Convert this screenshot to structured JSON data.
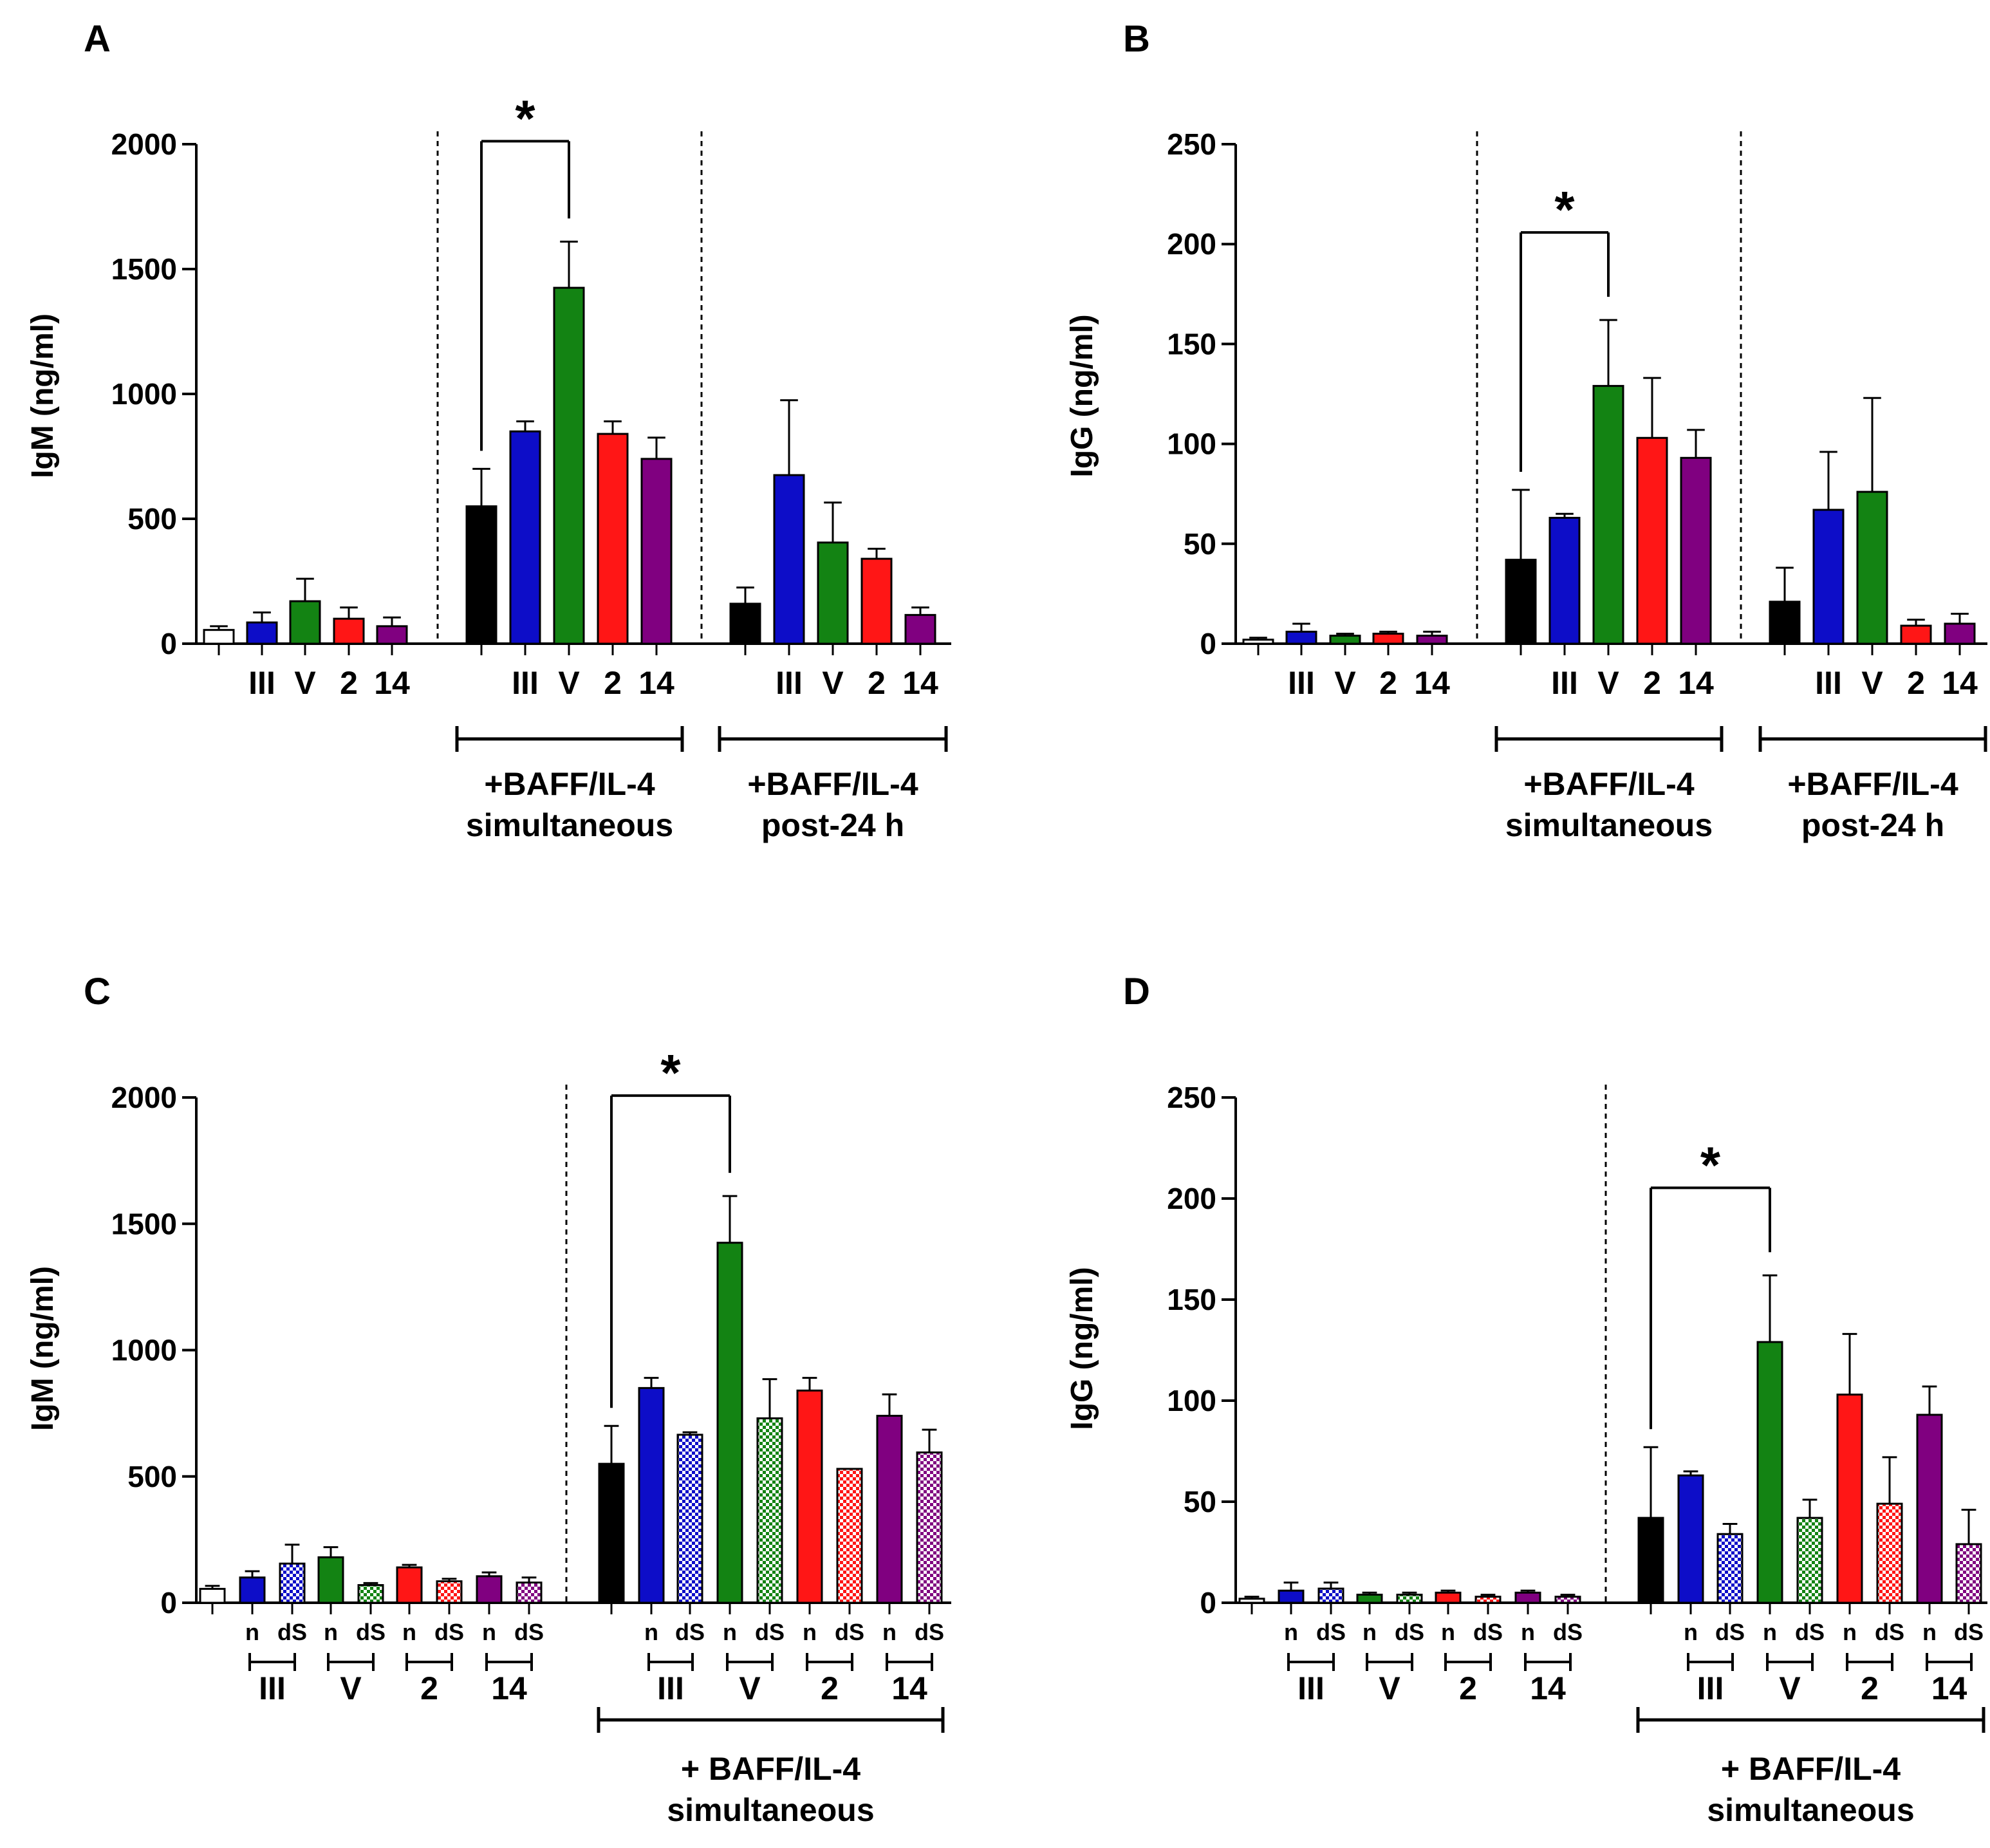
{
  "colors": {
    "control": "#ffffff",
    "III": "#0d0dc8",
    "V": "#138313",
    "2": "#ff1616",
    "14": "#800080",
    "none": "#000000"
  },
  "chart_data": [
    {
      "panel": "A",
      "type": "bar",
      "ylabel": "IgM (ng/ml)",
      "ylim": [
        0,
        2000
      ],
      "yticks": [
        0,
        500,
        1000,
        1500,
        2000
      ],
      "group_labels": [
        "+BAFF/IL-4\nsimultaneous",
        "+BAFF/IL-4\npost-24 h"
      ],
      "significance": {
        "from": 5,
        "to": 7,
        "label": "*"
      },
      "bars": [
        {
          "label": "",
          "group": "control",
          "value": 55,
          "error": 15,
          "fill": "control",
          "pattern": "solid",
          "cluster": 0
        },
        {
          "label": "III",
          "group": "III",
          "value": 85,
          "error": 40,
          "fill": "III",
          "pattern": "solid",
          "cluster": 0
        },
        {
          "label": "V",
          "group": "V",
          "value": 170,
          "error": 90,
          "fill": "V",
          "pattern": "solid",
          "cluster": 0
        },
        {
          "label": "2",
          "group": "2",
          "value": 100,
          "error": 45,
          "fill": "2",
          "pattern": "solid",
          "cluster": 0
        },
        {
          "label": "14",
          "group": "14",
          "value": 70,
          "error": 35,
          "fill": "14",
          "pattern": "solid",
          "cluster": 0
        },
        {
          "label": "",
          "group": "none",
          "value": 550,
          "error": 150,
          "fill": "none",
          "pattern": "solid",
          "cluster": 1
        },
        {
          "label": "III",
          "group": "III",
          "value": 850,
          "error": 40,
          "fill": "III",
          "pattern": "solid",
          "cluster": 1
        },
        {
          "label": "V",
          "group": "V",
          "value": 1425,
          "error": 185,
          "fill": "V",
          "pattern": "solid",
          "cluster": 1
        },
        {
          "label": "2",
          "group": "2",
          "value": 840,
          "error": 50,
          "fill": "2",
          "pattern": "solid",
          "cluster": 1
        },
        {
          "label": "14",
          "group": "14",
          "value": 740,
          "error": 85,
          "fill": "14",
          "pattern": "solid",
          "cluster": 1
        },
        {
          "label": "",
          "group": "none",
          "value": 160,
          "error": 65,
          "fill": "none",
          "pattern": "solid",
          "cluster": 2
        },
        {
          "label": "III",
          "group": "III",
          "value": 675,
          "error": 300,
          "fill": "III",
          "pattern": "solid",
          "cluster": 2
        },
        {
          "label": "V",
          "group": "V",
          "value": 405,
          "error": 160,
          "fill": "V",
          "pattern": "solid",
          "cluster": 2
        },
        {
          "label": "2",
          "group": "2",
          "value": 340,
          "error": 40,
          "fill": "2",
          "pattern": "solid",
          "cluster": 2
        },
        {
          "label": "14",
          "group": "14",
          "value": 115,
          "error": 30,
          "fill": "14",
          "pattern": "solid",
          "cluster": 2
        }
      ]
    },
    {
      "panel": "B",
      "type": "bar",
      "ylabel": "IgG (ng/ml)",
      "ylim": [
        0,
        250
      ],
      "yticks": [
        0,
        50,
        100,
        150,
        200,
        250
      ],
      "group_labels": [
        "+BAFF/IL-4\nsimultaneous",
        "+BAFF/IL-4\npost-24 h"
      ],
      "significance": {
        "from": 5,
        "to": 7,
        "label": "*"
      },
      "bars": [
        {
          "label": "",
          "group": "control",
          "value": 2,
          "error": 1,
          "fill": "control",
          "pattern": "solid",
          "cluster": 0
        },
        {
          "label": "III",
          "group": "III",
          "value": 6,
          "error": 4,
          "fill": "III",
          "pattern": "solid",
          "cluster": 0
        },
        {
          "label": "V",
          "group": "V",
          "value": 4,
          "error": 1,
          "fill": "V",
          "pattern": "solid",
          "cluster": 0
        },
        {
          "label": "2",
          "group": "2",
          "value": 5,
          "error": 1,
          "fill": "2",
          "pattern": "solid",
          "cluster": 0
        },
        {
          "label": "14",
          "group": "14",
          "value": 4,
          "error": 2,
          "fill": "14",
          "pattern": "solid",
          "cluster": 0
        },
        {
          "label": "",
          "group": "none",
          "value": 42,
          "error": 35,
          "fill": "none",
          "pattern": "solid",
          "cluster": 1
        },
        {
          "label": "III",
          "group": "III",
          "value": 63,
          "error": 2,
          "fill": "III",
          "pattern": "solid",
          "cluster": 1
        },
        {
          "label": "V",
          "group": "V",
          "value": 129,
          "error": 33,
          "fill": "V",
          "pattern": "solid",
          "cluster": 1
        },
        {
          "label": "2",
          "group": "2",
          "value": 103,
          "error": 30,
          "fill": "2",
          "pattern": "solid",
          "cluster": 1
        },
        {
          "label": "14",
          "group": "14",
          "value": 93,
          "error": 14,
          "fill": "14",
          "pattern": "solid",
          "cluster": 1
        },
        {
          "label": "",
          "group": "none",
          "value": 21,
          "error": 17,
          "fill": "none",
          "pattern": "solid",
          "cluster": 2
        },
        {
          "label": "III",
          "group": "III",
          "value": 67,
          "error": 29,
          "fill": "III",
          "pattern": "solid",
          "cluster": 2
        },
        {
          "label": "V",
          "group": "V",
          "value": 76,
          "error": 47,
          "fill": "V",
          "pattern": "solid",
          "cluster": 2
        },
        {
          "label": "2",
          "group": "2",
          "value": 9,
          "error": 3,
          "fill": "2",
          "pattern": "solid",
          "cluster": 2
        },
        {
          "label": "14",
          "group": "14",
          "value": 10,
          "error": 5,
          "fill": "14",
          "pattern": "solid",
          "cluster": 2
        }
      ]
    },
    {
      "panel": "C",
      "type": "bar",
      "ylabel": "IgM (ng/ml)",
      "ylim": [
        0,
        2000
      ],
      "yticks": [
        0,
        500,
        1000,
        1500,
        2000
      ],
      "subgroup_labels": [
        "III",
        "V",
        "2",
        "14",
        "III",
        "V",
        "2",
        "14"
      ],
      "group_labels": [
        "+ BAFF/IL-4\nsimultaneous"
      ],
      "significance": {
        "from": 9,
        "to": 12,
        "label": "*"
      },
      "bars": [
        {
          "label": "",
          "group": "control",
          "value": 55,
          "error": 12,
          "fill": "control",
          "pattern": "solid",
          "cluster": 0
        },
        {
          "label": "n",
          "group": "III",
          "value": 100,
          "error": 25,
          "fill": "III",
          "pattern": "solid",
          "cluster": 0
        },
        {
          "label": "dS",
          "group": "III",
          "value": 155,
          "error": 75,
          "fill": "III",
          "pattern": "checker",
          "cluster": 0
        },
        {
          "label": "n",
          "group": "V",
          "value": 180,
          "error": 40,
          "fill": "V",
          "pattern": "solid",
          "cluster": 0
        },
        {
          "label": "dS",
          "group": "V",
          "value": 70,
          "error": 8,
          "fill": "V",
          "pattern": "checker",
          "cluster": 0
        },
        {
          "label": "n",
          "group": "2",
          "value": 140,
          "error": 10,
          "fill": "2",
          "pattern": "solid",
          "cluster": 0
        },
        {
          "label": "dS",
          "group": "2",
          "value": 85,
          "error": 10,
          "fill": "2",
          "pattern": "checker",
          "cluster": 0
        },
        {
          "label": "n",
          "group": "14",
          "value": 105,
          "error": 15,
          "fill": "14",
          "pattern": "solid",
          "cluster": 0
        },
        {
          "label": "dS",
          "group": "14",
          "value": 80,
          "error": 20,
          "fill": "14",
          "pattern": "checker",
          "cluster": 0
        },
        {
          "label": "",
          "group": "none",
          "value": 550,
          "error": 150,
          "fill": "none",
          "pattern": "solid",
          "cluster": 1
        },
        {
          "label": "n",
          "group": "III",
          "value": 850,
          "error": 40,
          "fill": "III",
          "pattern": "solid",
          "cluster": 1
        },
        {
          "label": "dS",
          "group": "III",
          "value": 665,
          "error": 10,
          "fill": "III",
          "pattern": "checker",
          "cluster": 1
        },
        {
          "label": "n",
          "group": "V",
          "value": 1425,
          "error": 185,
          "fill": "V",
          "pattern": "solid",
          "cluster": 1
        },
        {
          "label": "dS",
          "group": "V",
          "value": 730,
          "error": 155,
          "fill": "V",
          "pattern": "checker",
          "cluster": 1
        },
        {
          "label": "n",
          "group": "2",
          "value": 840,
          "error": 50,
          "fill": "2",
          "pattern": "solid",
          "cluster": 1
        },
        {
          "label": "dS",
          "group": "2",
          "value": 530,
          "error": 0,
          "fill": "2",
          "pattern": "checker",
          "cluster": 1
        },
        {
          "label": "n",
          "group": "14",
          "value": 740,
          "error": 85,
          "fill": "14",
          "pattern": "solid",
          "cluster": 1
        },
        {
          "label": "dS",
          "group": "14",
          "value": 595,
          "error": 90,
          "fill": "14",
          "pattern": "checker",
          "cluster": 1
        }
      ]
    },
    {
      "panel": "D",
      "type": "bar",
      "ylabel": "IgG (ng/ml)",
      "ylim": [
        0,
        250
      ],
      "yticks": [
        0,
        50,
        100,
        150,
        200,
        250
      ],
      "subgroup_labels": [
        "III",
        "V",
        "2",
        "14",
        "III",
        "V",
        "2",
        "14"
      ],
      "group_labels": [
        "+ BAFF/IL-4\nsimultaneous"
      ],
      "significance": {
        "from": 9,
        "to": 12,
        "label": "*"
      },
      "bars": [
        {
          "label": "",
          "group": "control",
          "value": 2,
          "error": 1,
          "fill": "control",
          "pattern": "solid",
          "cluster": 0
        },
        {
          "label": "n",
          "group": "III",
          "value": 6,
          "error": 4,
          "fill": "III",
          "pattern": "solid",
          "cluster": 0
        },
        {
          "label": "dS",
          "group": "III",
          "value": 7,
          "error": 3,
          "fill": "III",
          "pattern": "checker",
          "cluster": 0
        },
        {
          "label": "n",
          "group": "V",
          "value": 4,
          "error": 1,
          "fill": "V",
          "pattern": "solid",
          "cluster": 0
        },
        {
          "label": "dS",
          "group": "V",
          "value": 4,
          "error": 1,
          "fill": "V",
          "pattern": "checker",
          "cluster": 0
        },
        {
          "label": "n",
          "group": "2",
          "value": 5,
          "error": 1,
          "fill": "2",
          "pattern": "solid",
          "cluster": 0
        },
        {
          "label": "dS",
          "group": "2",
          "value": 3,
          "error": 1,
          "fill": "2",
          "pattern": "checker",
          "cluster": 0
        },
        {
          "label": "n",
          "group": "14",
          "value": 5,
          "error": 1,
          "fill": "14",
          "pattern": "solid",
          "cluster": 0
        },
        {
          "label": "dS",
          "group": "14",
          "value": 3,
          "error": 1,
          "fill": "14",
          "pattern": "checker",
          "cluster": 0
        },
        {
          "label": "",
          "group": "none",
          "value": 42,
          "error": 35,
          "fill": "none",
          "pattern": "solid",
          "cluster": 1
        },
        {
          "label": "n",
          "group": "III",
          "value": 63,
          "error": 2,
          "fill": "III",
          "pattern": "solid",
          "cluster": 1
        },
        {
          "label": "dS",
          "group": "III",
          "value": 34,
          "error": 5,
          "fill": "III",
          "pattern": "checker",
          "cluster": 1
        },
        {
          "label": "n",
          "group": "V",
          "value": 129,
          "error": 33,
          "fill": "V",
          "pattern": "solid",
          "cluster": 1
        },
        {
          "label": "dS",
          "group": "V",
          "value": 42,
          "error": 9,
          "fill": "V",
          "pattern": "checker",
          "cluster": 1
        },
        {
          "label": "n",
          "group": "2",
          "value": 103,
          "error": 30,
          "fill": "2",
          "pattern": "solid",
          "cluster": 1
        },
        {
          "label": "dS",
          "group": "2",
          "value": 49,
          "error": 23,
          "fill": "2",
          "pattern": "checker",
          "cluster": 1
        },
        {
          "label": "n",
          "group": "14",
          "value": 93,
          "error": 14,
          "fill": "14",
          "pattern": "solid",
          "cluster": 1
        },
        {
          "label": "dS",
          "group": "14",
          "value": 29,
          "error": 17,
          "fill": "14",
          "pattern": "checker",
          "cluster": 1
        }
      ]
    }
  ]
}
